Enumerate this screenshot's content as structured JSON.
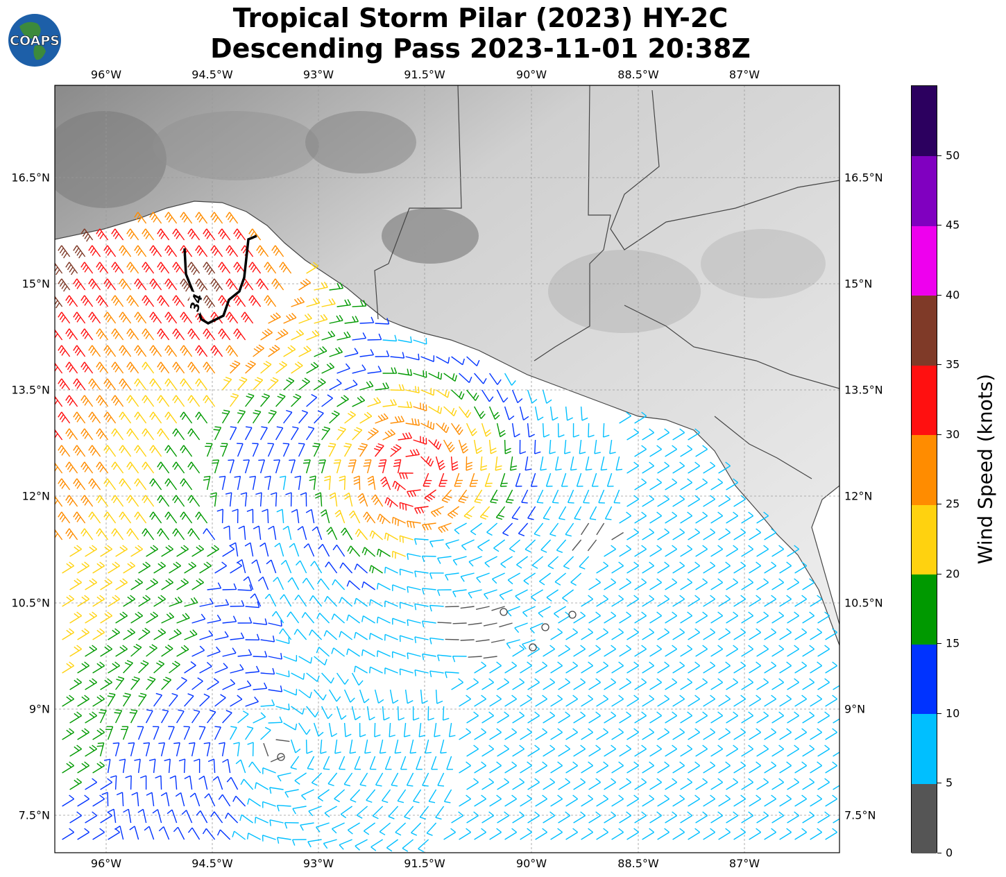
{
  "title": {
    "line1": "Tropical Storm Pilar (2023) HY-2C",
    "line2": "Descending Pass 2023-11-01 20:38Z"
  },
  "logo": {
    "text": "COAPS",
    "icon": "globe-icon"
  },
  "map": {
    "lon_ticks": [
      "96°W",
      "94.5°W",
      "93°W",
      "91.5°W",
      "90°W",
      "88.5°W",
      "87°W"
    ],
    "lat_ticks": [
      "16.5°N",
      "15°N",
      "13.5°N",
      "12°N",
      "10.5°N",
      "9°N",
      "7.5°N"
    ],
    "contour_label": "34",
    "wind_barbs": "wind barbs colored by wind speed over the Pacific south of Mexico and Guatemala",
    "storm_center": "TS Pilar circulation near 12.3°N 91.4°W"
  },
  "colorbar": {
    "label": "Wind Speed (knots)",
    "ticks": [
      "0",
      "5",
      "10",
      "15",
      "20",
      "25",
      "30",
      "35",
      "40",
      "45",
      "50"
    ],
    "colors": [
      "#555555",
      "#00bfff",
      "#0033ff",
      "#009900",
      "#ffd20f",
      "#ff8c00",
      "#ff1010",
      "#7f3a28",
      "#ee00ee",
      "#8000c0",
      "#2c005f"
    ]
  }
}
